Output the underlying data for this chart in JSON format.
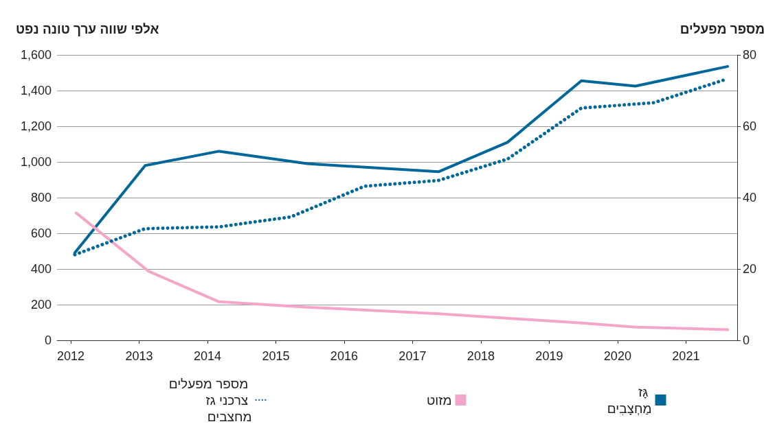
{
  "chart_data": {
    "type": "line",
    "ylabel": "אלפי שווה ערך טונה נפט",
    "y2label": "מספר מפעלים",
    "xlim": [
      2011.8,
      2021.75
    ],
    "xticks": [
      2012,
      2013,
      2014,
      2015,
      2016,
      2017,
      2018,
      2019,
      2020,
      2021
    ],
    "ylim": [
      0,
      1600
    ],
    "yticks": [
      0,
      {
        "value": 200,
        "label": "200"
      },
      {
        "value": 400,
        "label": "400"
      },
      {
        "value": 600,
        "label": "600"
      },
      {
        "value": 800,
        "label": "800"
      },
      {
        "value": 1000,
        "label": "1,000"
      },
      {
        "value": 1200,
        "label": "1,200"
      },
      {
        "value": 1400,
        "label": "1,400"
      },
      {
        "value": 1600,
        "label": "1,600"
      }
    ],
    "y2lim": [
      0,
      80
    ],
    "y2ticks": [
      0,
      20,
      40,
      60,
      80
    ],
    "grid": "y",
    "legend": "bottom",
    "marker": "none",
    "series": [
      {
        "name": "גָּז מַחְצָבִים",
        "color": "#00679b",
        "line_style": "solid",
        "x": [
          2012.06,
          2013.09,
          2014.17,
          2015.46,
          2017.38,
          2018.39,
          2019.47,
          2020.26,
          2021.61
        ],
        "values": [
          490,
          980,
          1060,
          990,
          945,
          1110,
          1455,
          1425,
          1535
        ]
      },
      {
        "name": "מזוט",
        "color": "#f4a6c8",
        "line_style": "solid",
        "x": [
          2012.08,
          2013.14,
          2014.17,
          2015.46,
          2017.38,
          2019.47,
          2020.26,
          2021.61
        ],
        "values": [
          714,
          387,
          216,
          186,
          149,
          97,
          74,
          60
        ]
      },
      {
        "name": "מספר מפעלים צרכני גז מחצבים",
        "color": "#00679b",
        "line_style": "dotted",
        "axis": "y2",
        "x": [
          2012.06,
          2013.09,
          2014.17,
          2015.22,
          2016.3,
          2017.38,
          2018.39,
          2019.47,
          2020.53,
          2021.61
        ],
        "values": [
          24,
          31.3,
          31.8,
          34.6,
          43.2,
          44.8,
          50.8,
          65.1,
          66.6,
          73.3
        ]
      }
    ]
  }
}
